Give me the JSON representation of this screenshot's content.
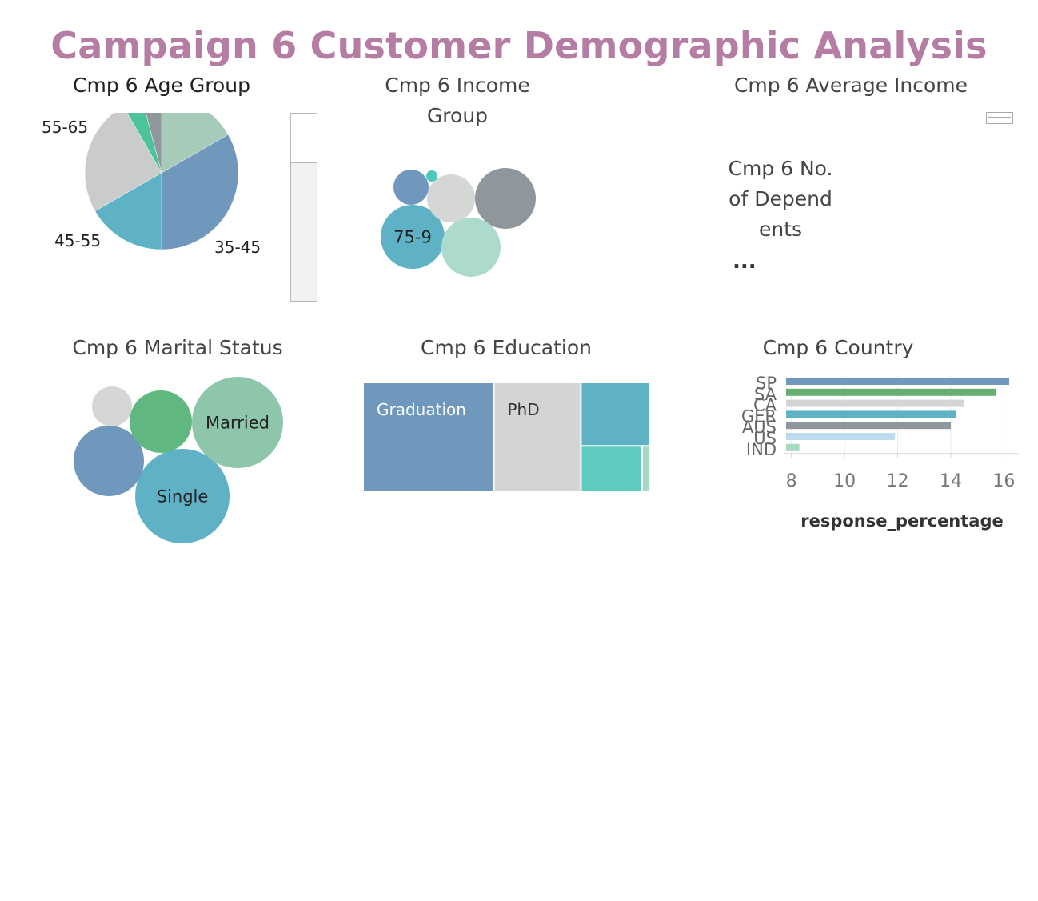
{
  "dashboard": {
    "title": "Campaign 6 Customer Demographic Analysis",
    "title_color": "#b57ca4"
  },
  "sheets": {
    "age_group": "Cmp 6 Age Group",
    "income_group": "Cmp 6 Income Group",
    "average_income": "Cmp 6 Average Income",
    "dependents": "Cmp 6 No. of Dependents",
    "dependents_overflow": "...",
    "marital_status": "Cmp 6 Marital Status",
    "education": "Cmp 6 Education",
    "country": "Cmp 6 Country"
  },
  "chart_data": [
    {
      "id": "age_group",
      "type": "pie",
      "slices": [
        {
          "label": "",
          "share": 0.167,
          "color": "#a6cbb8"
        },
        {
          "label": "35-45",
          "share": 0.333,
          "color": "#7097bc"
        },
        {
          "label": "45-55",
          "share": 0.167,
          "color": "#5fb2c6"
        },
        {
          "label": "55-65",
          "share": 0.25,
          "color": "#cacbcb"
        },
        {
          "label": "",
          "share": 0.042,
          "color": "#4cc39d"
        },
        {
          "label": "",
          "share": 0.041,
          "color": "#8f979c"
        }
      ]
    },
    {
      "id": "income_group",
      "type": "bubble",
      "bubbles": [
        {
          "label": "75-9",
          "size": 40,
          "color": "#5fb2c6"
        },
        {
          "label": "",
          "size": 38,
          "color": "#8f979c"
        },
        {
          "label": "",
          "size": 37,
          "color": "#acdbcd"
        },
        {
          "label": "",
          "size": 30,
          "color": "#d5d6d6"
        },
        {
          "label": "",
          "size": 22,
          "color": "#7097bc"
        },
        {
          "label": "",
          "size": 7,
          "color": "#4fc7bb"
        }
      ]
    },
    {
      "id": "marital_status",
      "type": "bubble",
      "bubbles": [
        {
          "label": "Single",
          "size": 59,
          "color": "#5fb2c6"
        },
        {
          "label": "Married",
          "size": 57,
          "color": "#8ec6ac"
        },
        {
          "label": "",
          "size": 44,
          "color": "#7097bc"
        },
        {
          "label": "",
          "size": 39,
          "color": "#60b880"
        },
        {
          "label": "",
          "size": 25,
          "color": "#d5d6d6"
        }
      ]
    },
    {
      "id": "education",
      "type": "treemap",
      "cells": [
        {
          "label": "Graduation",
          "value": 45,
          "color": "#7097bc",
          "text_color": "#ffffff"
        },
        {
          "label": "PhD",
          "value": 30,
          "color": "#d3d4d4",
          "text_color": "#333333"
        },
        {
          "label": "",
          "value": 13.6,
          "color": "#5fb2c6",
          "text_color": "#333333"
        },
        {
          "label": "",
          "value": 8.6,
          "color": "#5dcbbd",
          "text_color": "#333333"
        },
        {
          "label": "",
          "value": 0.8,
          "color": "#a6d9c2",
          "text_color": "#333333"
        }
      ]
    },
    {
      "id": "country",
      "type": "bar",
      "orientation": "horizontal",
      "categories": [
        "SP",
        "SA",
        "CA",
        "GER",
        "AUS",
        "US",
        "IND"
      ],
      "values": [
        16.2,
        15.7,
        14.5,
        14.2,
        14.0,
        11.9,
        8.3
      ],
      "colors": [
        "#7097bc",
        "#67ae73",
        "#d3d4d4",
        "#5fb2c6",
        "#8f979c",
        "#bcdcee",
        "#a6d9c2"
      ],
      "xlabel": "response_percentage",
      "xlim": [
        7.8,
        16.5
      ],
      "xticks": [
        8,
        10,
        12,
        14,
        16
      ],
      "grid": true
    }
  ]
}
